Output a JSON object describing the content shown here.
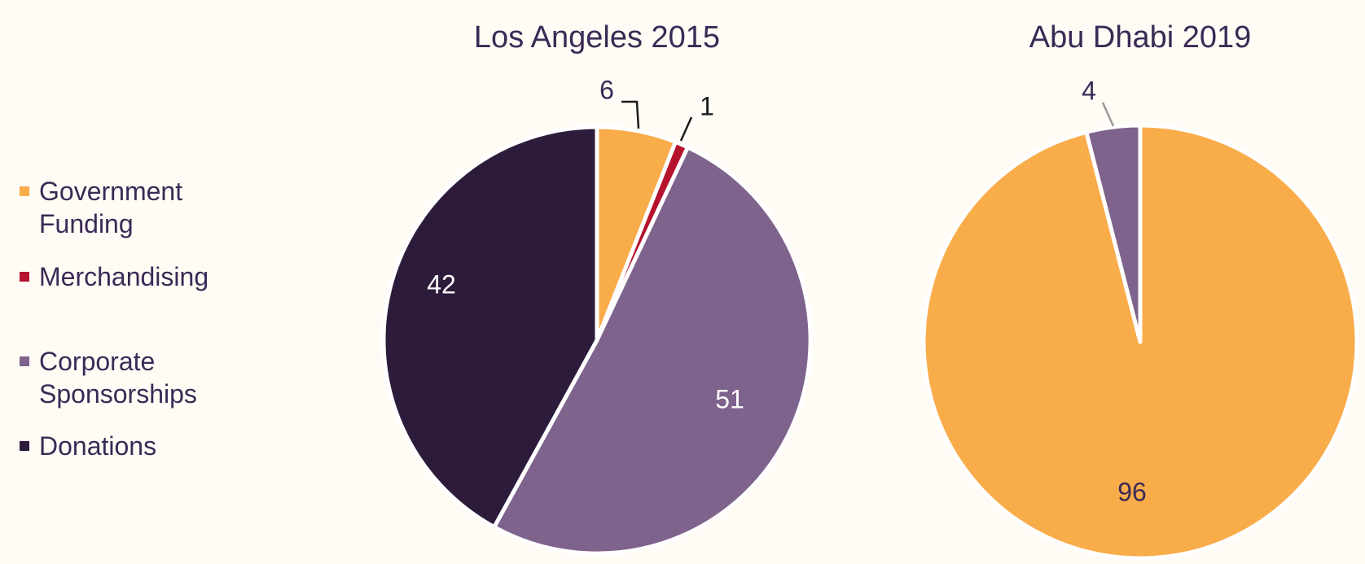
{
  "chart_data": {
    "type": "pie",
    "legend": {
      "position": "left",
      "entries": [
        {
          "name": "Government Funding",
          "color": "#f9ac4a"
        },
        {
          "name": "Merchandising",
          "color": "#b5122e"
        },
        {
          "name": "Corporate Sponsorships",
          "color": "#7e638d"
        },
        {
          "name": "Donations",
          "color": "#2d1b3b"
        }
      ]
    },
    "charts": [
      {
        "title": "Los Angeles 2015",
        "slices": [
          {
            "category": "Government Funding",
            "value": 6,
            "label": "6"
          },
          {
            "category": "Merchandising",
            "value": 1,
            "label": "1"
          },
          {
            "category": "Corporate Sponsorships",
            "value": 51,
            "label": "51"
          },
          {
            "category": "Donations",
            "value": 42,
            "label": "42"
          }
        ]
      },
      {
        "title": "Abu Dhabi 2019",
        "slices": [
          {
            "category": "Government Funding",
            "value": 96,
            "label": "96"
          },
          {
            "category": "Corporate Sponsorships",
            "value": 4,
            "label": "4"
          }
        ]
      }
    ]
  }
}
